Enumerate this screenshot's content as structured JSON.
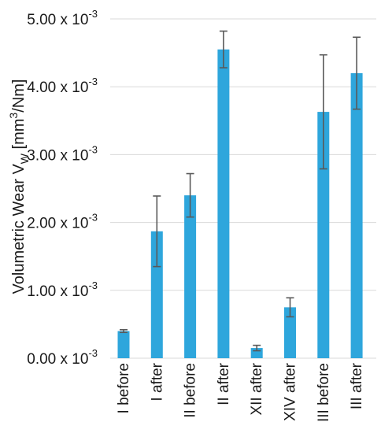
{
  "chart_data": {
    "type": "bar",
    "categories": [
      "I before",
      "I after",
      "II before",
      "II after",
      "XII after",
      "XIV after",
      "III before",
      "III after"
    ],
    "values": [
      0.4,
      1.87,
      2.4,
      4.55,
      0.15,
      0.75,
      3.63,
      4.2
    ],
    "errors": [
      0.02,
      0.52,
      0.32,
      0.27,
      0.04,
      0.14,
      0.84,
      0.53
    ],
    "scale_exponent": -3,
    "ylim": [
      0,
      5
    ],
    "yticks": [
      0,
      1,
      2,
      3,
      4,
      5
    ],
    "ytick_labels": [
      "0.00 x 10",
      "1.00 x 10",
      "2.00 x 10",
      "3.00 x 10",
      "4.00 x 10",
      "5.00 x 10"
    ],
    "ytick_exponent": "-3",
    "ylabel": {
      "main": "Volumetric Wear V",
      "subscript": "W",
      "unit_start": " [mm",
      "superscript": "3",
      "unit_end": "/Nm]"
    },
    "xlabel": "",
    "title": "",
    "grid": true,
    "legend": "none",
    "colors": {
      "bar": "#2ea6dc",
      "error_bar": "#595959",
      "grid": "#d9d9d9",
      "text": "#1a1a1a"
    }
  }
}
